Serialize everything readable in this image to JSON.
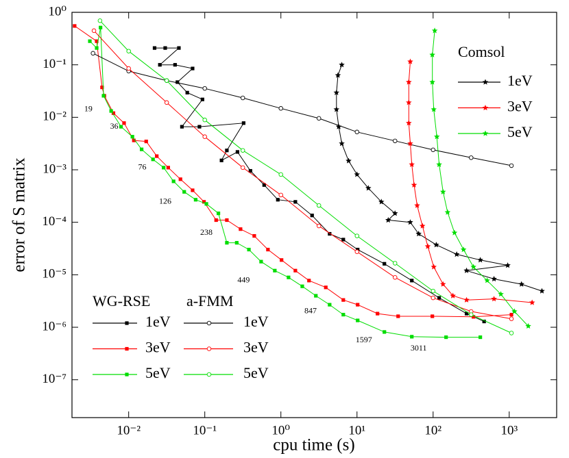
{
  "chart_data": {
    "type": "line",
    "x_label": "cpu time (s)",
    "y_label": "error of S matrix",
    "log_x": true,
    "log_y": true,
    "xlim": [
      0.0018,
      4200
    ],
    "ylim": [
      1.9e-08,
      1
    ],
    "xticks": [
      {
        "value": 0.01,
        "label": "10⁻²"
      },
      {
        "value": 0.1,
        "label": "10⁻¹"
      },
      {
        "value": 1,
        "label": "10⁰"
      },
      {
        "value": 10,
        "label": "10¹"
      },
      {
        "value": 100,
        "label": "10²"
      },
      {
        "value": 1000,
        "label": "10³"
      }
    ],
    "yticks": [
      {
        "value": 1,
        "label": "10⁰"
      },
      {
        "value": 0.1,
        "label": "10⁻¹"
      },
      {
        "value": 0.01,
        "label": "10⁻²"
      },
      {
        "value": 0.001,
        "label": "10⁻³"
      },
      {
        "value": 0.0001,
        "label": "10⁻⁴"
      },
      {
        "value": 1e-05,
        "label": "10⁻⁵"
      },
      {
        "value": 1e-06,
        "label": "10⁻⁶"
      },
      {
        "value": 1e-07,
        "label": "10⁻⁷"
      }
    ],
    "groups": [
      {
        "title": "WG-RSE",
        "marker": "square",
        "series": [
          {
            "name": "1eV",
            "color": "#000000",
            "x": [
              0.0219,
              0.0302,
              0.0457,
              0.0257,
              0.0407,
              0.0692,
              0.0437,
              0.0589,
              0.0933,
              0.0501,
              0.0851,
              0.324,
              0.195,
              0.166,
              0.269,
              0.398,
              0.603,
              0.912,
              1.55,
              2.57,
              4.37,
              6.61,
              10.2,
              22.9,
              52.5,
              120,
              275,
              468
            ],
            "values": [
              0.209,
              0.209,
              0.209,
              0.1,
              0.1,
              0.0851,
              0.0468,
              0.0295,
              0.0219,
              0.00661,
              0.00661,
              0.00776,
              0.00234,
              0.00151,
              0.00219,
              0.000955,
              0.000513,
              0.000269,
              0.000245,
              0.000135,
              6.03e-05,
              4.68e-05,
              3.02e-05,
              1.62e-05,
              7.76e-06,
              3.63e-06,
              1.82e-06,
              1.29e-06
            ]
          },
          {
            "name": "3eV",
            "color": "#ff0000",
            "x": [
              0.00195,
              0.0038,
              0.00447,
              0.00479,
              0.00631,
              0.0087,
              0.0117,
              0.017,
              0.0234,
              0.0331,
              0.0479,
              0.0692,
              0.0977,
              0.141,
              0.195,
              0.295,
              0.447,
              0.676,
              1.02,
              1.55,
              2.34,
              3.89,
              6.61,
              10.2,
              18.6,
              34.7,
              97.7,
              339,
              1070
            ],
            "values": [
              0.55,
              0.282,
              0.0372,
              0.0257,
              0.012,
              0.00776,
              0.00363,
              0.00347,
              0.00182,
              0.0011,
              0.000661,
              0.000407,
              0.000245,
              0.00011,
              0.00011,
              7.41e-05,
              5.5e-05,
              3.02e-05,
              1.91e-05,
              1.2e-05,
              7.76e-06,
              5.75e-06,
              3.31e-06,
              2.69e-06,
              1.82e-06,
              1.62e-06,
              1.62e-06,
              1.58e-06,
              1.74e-06
            ]
          },
          {
            "name": "5eV",
            "color": "#00dd00",
            "x": [
              0.00309,
              0.0038,
              0.00427,
              0.00468,
              0.00589,
              0.00794,
              0.0112,
              0.0148,
              0.0209,
              0.0288,
              0.0389,
              0.0537,
              0.0759,
              0.105,
              0.151,
              0.195,
              0.263,
              0.38,
              0.55,
              0.832,
              1.26,
              1.91,
              2.88,
              4.37,
              6.61,
              10.2,
              22.9,
              52.5,
              148,
              417
            ],
            "values": [
              0.282,
              0.209,
              0.513,
              0.0257,
              0.0132,
              0.00661,
              0.00427,
              0.00245,
              0.00158,
              0.0011,
              0.000603,
              0.00038,
              0.000269,
              0.000224,
              0.000148,
              4.07e-05,
              4.07e-05,
              3.02e-05,
              1.78e-05,
              1.2e-05,
              8.91e-06,
              6.03e-06,
              3.98e-06,
              2.69e-06,
              1.74e-06,
              1.35e-06,
              8.13e-07,
              6.61e-07,
              6.46e-07,
              6.46e-07
            ]
          }
        ]
      },
      {
        "title": "a-FMM",
        "marker": "circle",
        "series": [
          {
            "name": "1eV",
            "color": "#000000",
            "x": [
              0.0034,
              0.01,
              0.0316,
              0.1,
              0.316,
              1,
              3.16,
              10,
              31.6,
              100,
              316,
              1070
            ],
            "values": [
              0.166,
              0.0759,
              0.0501,
              0.0355,
              0.0234,
              0.0148,
              0.00955,
              0.00525,
              0.00355,
              0.0024,
              0.0017,
              0.0012
            ]
          },
          {
            "name": "3eV",
            "color": "#ff0000",
            "x": [
              0.0035,
              0.01,
              0.0316,
              0.1,
              0.316,
              1,
              3.16,
              10,
              31.6,
              100,
              316,
              1070
            ],
            "values": [
              0.447,
              0.0851,
              0.0191,
              0.00427,
              0.0011,
              0.000331,
              8.51e-05,
              2.75e-05,
              8.91e-06,
              3.63e-06,
              2e-06,
              1.45e-06
            ]
          },
          {
            "name": "5eV",
            "color": "#00dd00",
            "x": [
              0.0042,
              0.01,
              0.0316,
              0.1,
              0.316,
              1,
              3.16,
              10,
              31.6,
              100,
              316,
              1070
            ],
            "values": [
              0.692,
              0.182,
              0.0501,
              0.00891,
              0.00234,
              0.000813,
              0.000209,
              5.5e-05,
              1.66e-05,
              4.9e-06,
              1.74e-06,
              7.76e-07
            ]
          }
        ]
      },
      {
        "title": "Comsol",
        "marker": "star",
        "series": [
          {
            "name": "1eV",
            "color": "#000000",
            "x": [
              6.31,
              5.62,
              5.37,
              5.37,
              5.75,
              6.31,
              7.76,
              10,
              14.1,
              20.9,
              31.6,
              25.7,
              50.1,
              64.6,
              110,
              204,
              417,
              955,
              275,
              631,
              1450,
              2690
            ],
            "values": [
              0.1,
              0.0631,
              0.0295,
              0.0141,
              0.00661,
              0.00316,
              0.00148,
              0.000813,
              0.000447,
              0.000245,
              0.000148,
              0.00011,
              0.0001,
              6.03e-05,
              3.72e-05,
              2.45e-05,
              1.91e-05,
              1.51e-05,
              1.2e-05,
              8.32e-06,
              6.61e-06,
              4.9e-06
            ]
          },
          {
            "name": "3eV",
            "color": "#ff0000",
            "x": [
              50.1,
              47.9,
              47.9,
              47.9,
              50.1,
              52.5,
              56.2,
              61.7,
              72.4,
              85.1,
              102,
              135,
              182,
              275,
              631,
              2000
            ],
            "values": [
              0.115,
              0.0468,
              0.0191,
              0.00776,
              0.00316,
              0.00126,
              0.000513,
              0.000209,
              8.51e-05,
              3.47e-05,
              1.41e-05,
              6.61e-06,
              3.98e-06,
              3.31e-06,
              3.47e-06,
              2.95e-06
            ]
          },
          {
            "name": "5eV",
            "color": "#00dd00",
            "x": [
              105,
              97.7,
              97.7,
              102,
              112,
              120,
              135,
              155,
              191,
              251,
              339,
              513,
              776,
              1170,
              1780
            ],
            "values": [
              0.447,
              0.155,
              0.0468,
              0.0141,
              0.00427,
              0.00126,
              0.00038,
              0.000155,
              6.31e-05,
              3.02e-05,
              1.41e-05,
              7.76e-06,
              4.27e-06,
              2e-06,
              1.05e-06
            ]
          }
        ]
      }
    ],
    "annotations": [
      {
        "text": "19",
        "x": 0.00295,
        "y": 0.0141
      },
      {
        "text": "36",
        "x": 0.00646,
        "y": 0.00661
      },
      {
        "text": "76",
        "x": 0.0151,
        "y": 0.0011
      },
      {
        "text": "126",
        "x": 0.0302,
        "y": 0.000245
      },
      {
        "text": "238",
        "x": 0.105,
        "y": 6.31e-05
      },
      {
        "text": "449",
        "x": 0.324,
        "y": 7.76e-06
      },
      {
        "text": "847",
        "x": 2.45,
        "y": 2e-06
      },
      {
        "text": "1597",
        "x": 12.3,
        "y": 5.6e-07
      },
      {
        "text": "3011",
        "x": 64.6,
        "y": 3.9e-07
      }
    ]
  }
}
